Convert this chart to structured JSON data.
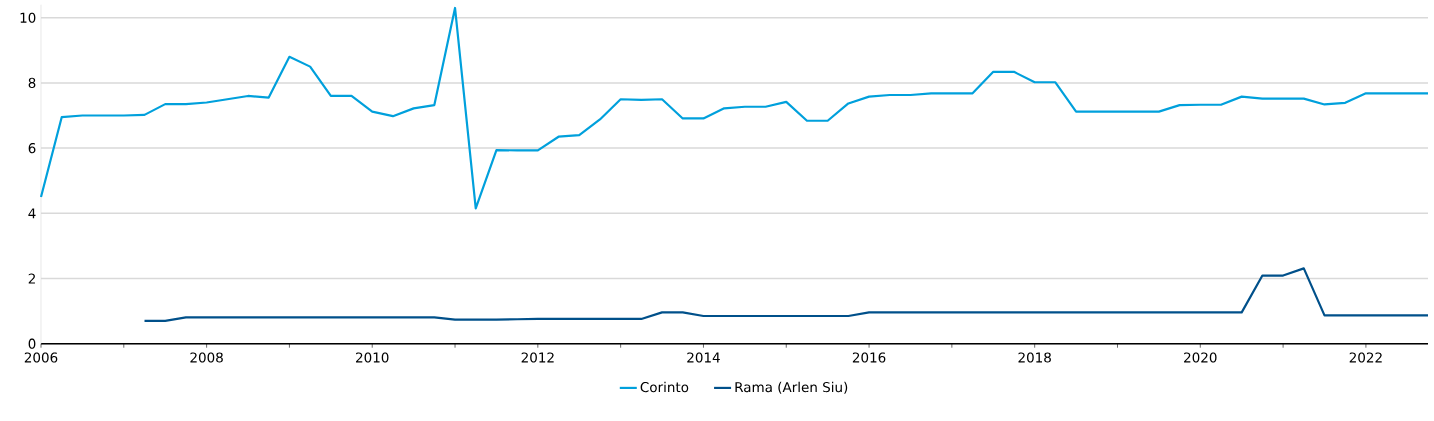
{
  "chart_data": {
    "type": "line",
    "x": [
      2006.0,
      2006.25,
      2006.5,
      2006.75,
      2007.0,
      2007.25,
      2007.5,
      2007.75,
      2008.0,
      2008.25,
      2008.5,
      2008.75,
      2009.0,
      2009.25,
      2009.5,
      2009.75,
      2010.0,
      2010.25,
      2010.5,
      2010.75,
      2011.0,
      2011.25,
      2011.5,
      2011.75,
      2012.0,
      2012.25,
      2012.5,
      2012.75,
      2013.0,
      2013.25,
      2013.5,
      2013.75,
      2014.0,
      2014.25,
      2014.5,
      2014.75,
      2015.0,
      2015.25,
      2015.5,
      2015.75,
      2016.0,
      2016.25,
      2016.5,
      2016.75,
      2017.0,
      2017.25,
      2017.5,
      2017.75,
      2018.0,
      2018.25,
      2018.5,
      2018.75,
      2019.0,
      2019.25,
      2019.5,
      2019.75,
      2020.0,
      2020.25,
      2020.5,
      2020.75,
      2021.0,
      2021.25,
      2021.5,
      2021.75,
      2022.0,
      2022.25,
      2022.5,
      2022.75
    ],
    "series": [
      {
        "name": "Corinto",
        "color": "#00a0dc",
        "values": [
          4.5,
          6.95,
          7.0,
          7.0,
          7.0,
          7.02,
          7.35,
          7.35,
          7.4,
          7.5,
          7.6,
          7.55,
          8.8,
          8.5,
          7.6,
          7.6,
          7.12,
          6.98,
          7.22,
          7.32,
          10.3,
          4.15,
          5.94,
          5.93,
          5.93,
          6.35,
          6.4,
          6.88,
          7.5,
          7.48,
          7.5,
          6.91,
          6.91,
          7.22,
          7.27,
          7.27,
          7.42,
          6.84,
          6.84,
          7.37,
          7.58,
          7.63,
          7.63,
          7.68,
          7.68,
          7.68,
          8.34,
          8.34,
          8.02,
          8.02,
          7.12,
          7.12,
          7.12,
          7.12,
          7.12,
          7.32,
          7.33,
          7.33,
          7.58,
          7.52,
          7.52,
          7.52,
          7.34,
          7.39,
          7.68,
          7.68,
          7.68,
          7.68
        ]
      },
      {
        "name": "Rama (Arlen Siu)",
        "color": "#00508a",
        "values": [
          null,
          null,
          null,
          null,
          null,
          0.7,
          0.7,
          0.81,
          0.81,
          0.81,
          0.81,
          0.81,
          0.81,
          0.81,
          0.81,
          0.81,
          0.81,
          0.81,
          0.81,
          0.81,
          0.74,
          0.74,
          0.74,
          0.75,
          0.76,
          0.76,
          0.76,
          0.76,
          0.76,
          0.76,
          0.96,
          0.96,
          0.85,
          0.85,
          0.85,
          0.85,
          0.85,
          0.85,
          0.85,
          0.85,
          0.96,
          0.96,
          0.96,
          0.96,
          0.96,
          0.96,
          0.96,
          0.96,
          0.96,
          0.96,
          0.96,
          0.96,
          0.96,
          0.96,
          0.96,
          0.96,
          0.96,
          0.96,
          0.96,
          2.09,
          2.09,
          2.31,
          0.87,
          0.87,
          0.87,
          0.87,
          0.87,
          0.87
        ]
      }
    ],
    "xlim": [
      2006,
      2022.75
    ],
    "xticks": [
      2006,
      {
        "value": 2007,
        "label": null
      },
      2008,
      {
        "value": 2009,
        "label": null
      },
      2010,
      {
        "value": 2011,
        "label": null
      },
      2012,
      {
        "value": 2013,
        "label": null
      },
      2014,
      {
        "value": 2015,
        "label": null
      },
      2016,
      {
        "value": 2017,
        "label": null
      },
      2018,
      {
        "value": 2019,
        "label": null
      },
      2020,
      {
        "value": 2021,
        "label": null
      },
      2022
    ],
    "ylim": [
      0,
      10.4
    ],
    "yticks": [
      0,
      2,
      4,
      6,
      8,
      10
    ],
    "grid": "y",
    "legend": "bottom",
    "marker": "none",
    "line_style": "solid"
  }
}
